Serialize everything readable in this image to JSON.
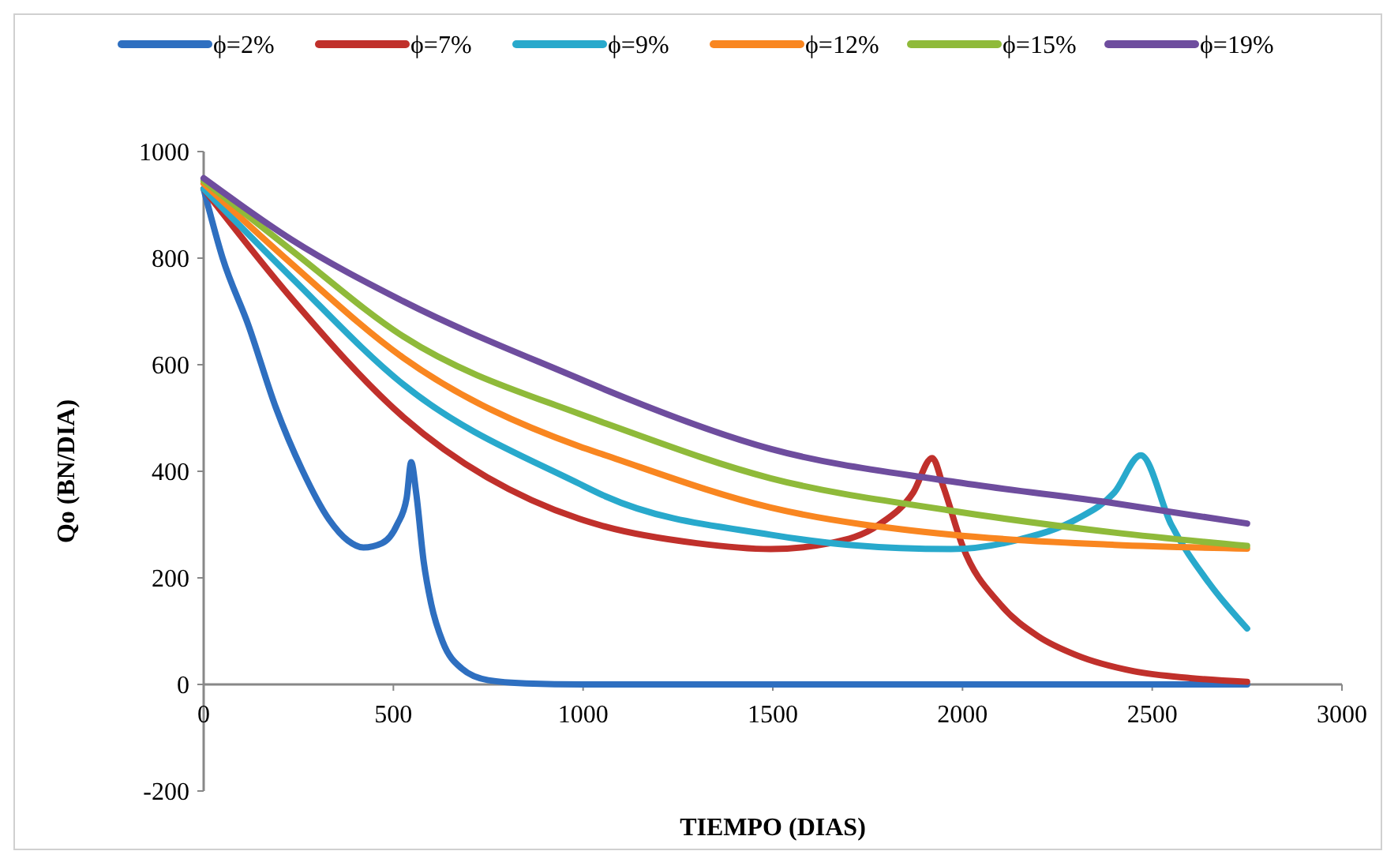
{
  "chart_data": {
    "type": "line",
    "xlabel": "TIEMPO (DIAS)",
    "ylabel": "Qo (BN/DIA)",
    "xlim": [
      0,
      3000
    ],
    "xticks": [
      0,
      500,
      1000,
      1500,
      2000,
      2500,
      3000
    ],
    "ylim": [
      -200,
      1000
    ],
    "yticks": [
      -200,
      0,
      200,
      400,
      600,
      800,
      1000
    ],
    "legend": "top",
    "grid": false,
    "marker": "none",
    "line_style": "solid",
    "series": [
      {
        "name": "ϕ=2%",
        "color": "#2e6fc0",
        "x": [
          0,
          50,
          118,
          190,
          260,
          330,
          380,
          421,
          470,
          510,
          535,
          547,
          560,
          580,
          600,
          630,
          680,
          750,
          850,
          1000,
          2750
        ],
        "values": [
          930,
          800,
          674,
          520,
          402,
          310,
          270,
          257,
          265,
          300,
          350,
          417,
          360,
          230,
          150,
          80,
          30,
          8,
          2,
          0,
          0
        ]
      },
      {
        "name": "ϕ=7%",
        "color": "#c0302b",
        "x": [
          0,
          231,
          526,
          989,
          1059,
          1300,
          1494,
          1650,
          1780,
          1870,
          1920,
          1950,
          2000,
          2100,
          2200,
          2300,
          2450,
          2600,
          2750
        ],
        "values": [
          930,
          725,
          502,
          311,
          296,
          265,
          254,
          265,
          300,
          360,
          425,
          370,
          260,
          150,
          90,
          55,
          25,
          12,
          5
        ]
      },
      {
        "name": "ϕ=9%",
        "color": "#28a9cc",
        "x": [
          0,
          231,
          526,
          989,
          1059,
          1494,
          1700,
          1970,
          2150,
          2300,
          2400,
          2470,
          2550,
          2650,
          2750
        ],
        "values": [
          930,
          764,
          563,
          377,
          353,
          281,
          262,
          254,
          272,
          310,
          360,
          430,
          300,
          190,
          105
        ]
      },
      {
        "name": "ϕ=12%",
        "color": "#f98620",
        "x": [
          0,
          231,
          526,
          989,
          1059,
          1494,
          1970,
          2400,
          2750
        ],
        "values": [
          940,
          790,
          613,
          447,
          430,
          332,
          281,
          262,
          255
        ]
      },
      {
        "name": "ϕ=15%",
        "color": "#8fba3a",
        "x": [
          0,
          231,
          526,
          989,
          1059,
          1494,
          1970,
          2400,
          2750
        ],
        "values": [
          945,
          815,
          653,
          508,
          490,
          387,
          326,
          285,
          260
        ]
      },
      {
        "name": "ϕ=19%",
        "color": "#6e4d9e",
        "x": [
          0,
          231,
          526,
          989,
          1059,
          1494,
          1970,
          2400,
          2750
        ],
        "values": [
          950,
          835,
          719,
          574,
          553,
          442,
          381,
          340,
          302
        ]
      }
    ]
  }
}
